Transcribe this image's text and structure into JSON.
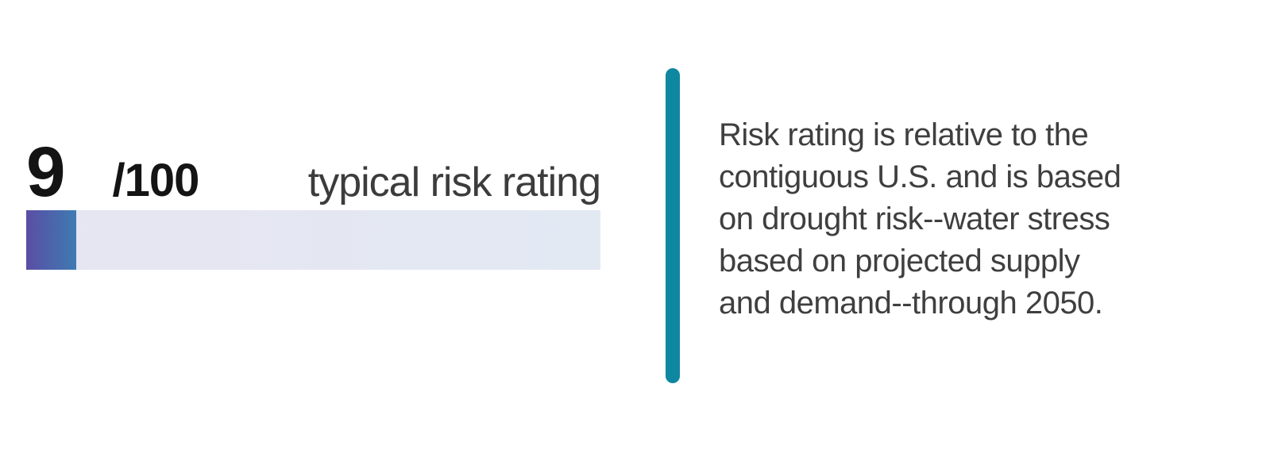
{
  "score_card": {
    "value": "9",
    "denominator": "/100",
    "label": "typical risk rating",
    "score": 9,
    "max": 100,
    "progress_percent": 8.7
  },
  "description": {
    "lines": [
      "Risk rating is relative to the",
      "contiguous U.S. and is based",
      "on drought risk--water stress",
      "based on projected supply",
      "and demand--through 2050."
    ]
  },
  "colors": {
    "fill_gradient_start": "#5a4ea4",
    "fill_gradient_end": "#3f7ab2",
    "track_gradient_start": "#e7e5f2",
    "track_gradient_end": "#e2e9f3",
    "divider_teal": "#0e87a0",
    "score_text": "#141414",
    "label_text": "#3c3c3c",
    "description_text": "#3f3f3f"
  }
}
